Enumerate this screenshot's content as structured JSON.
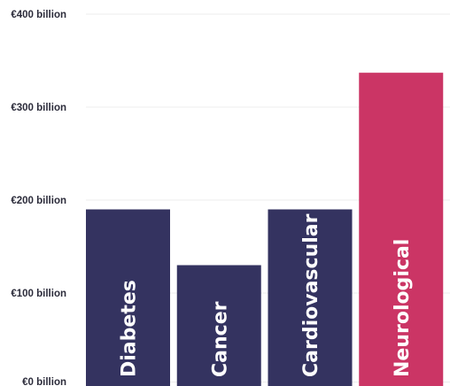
{
  "chart_data": {
    "type": "bar",
    "title": "",
    "xlabel": "",
    "ylabel": "",
    "categories": [
      "Diabetes",
      "Cancer",
      "Cardiovascular",
      "Neurological"
    ],
    "values": [
      190,
      130,
      190,
      337
    ],
    "ylim": [
      0,
      400
    ],
    "y_ticks": [
      {
        "value": 0,
        "label": "€0 billion"
      },
      {
        "value": 100,
        "label": "€100 billion"
      },
      {
        "value": 200,
        "label": "€200 billion"
      },
      {
        "value": 300,
        "label": "€300 billion"
      },
      {
        "value": 400,
        "label": "€400 billion"
      }
    ],
    "bar_colors": [
      "#343360",
      "#343360",
      "#343360",
      "#cb3565"
    ],
    "grid": true,
    "legend": "none",
    "labels_inside_bars": true
  }
}
